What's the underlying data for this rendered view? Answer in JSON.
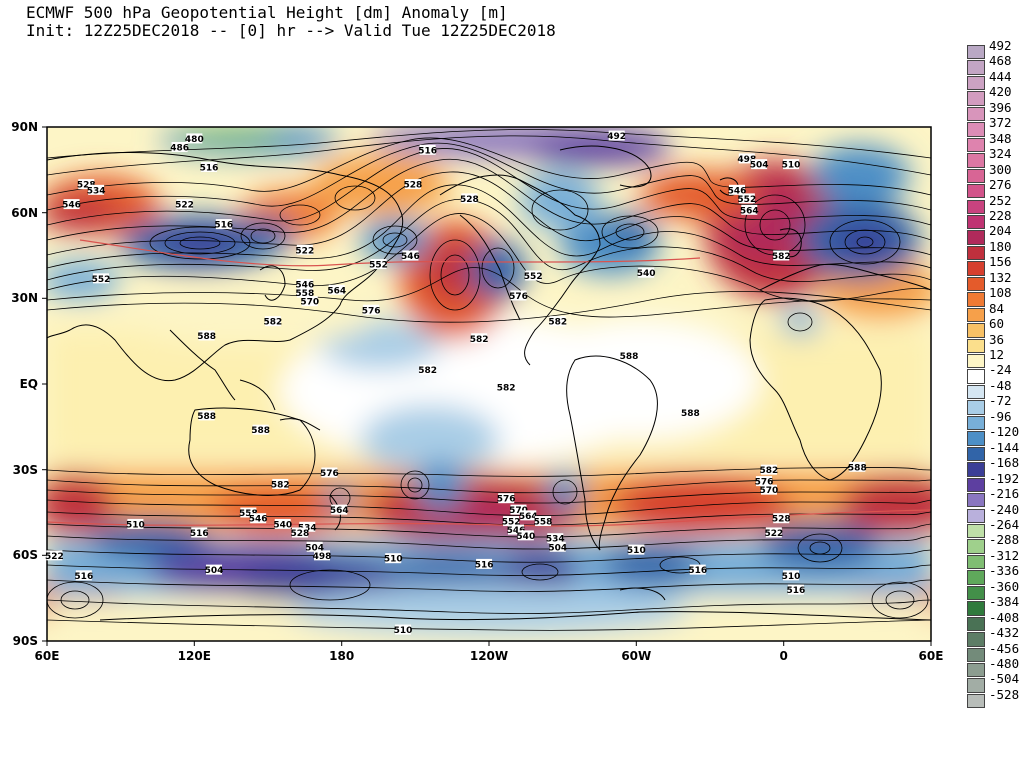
{
  "title": {
    "line1": "ECMWF 500 hPa Geopotential Height [dm] Anomaly [m]",
    "line2": "Init: 12Z25DEC2018 -- [0] hr --> Valid Tue 12Z25DEC2018"
  },
  "axes": {
    "lat_labels": [
      "90N",
      "60N",
      "30N",
      "EQ",
      "30S",
      "60S",
      "90S"
    ],
    "lon_labels": [
      "60E",
      "120E",
      "180",
      "120W",
      "60W",
      "0",
      "60E"
    ]
  },
  "colors": {
    "land_outline": "#000000",
    "contour": "#000000",
    "ref_contour": "#d9534f",
    "ocean_neutral": "#ffffff"
  },
  "legend": {
    "entries": [
      {
        "label": "492",
        "color": "#b9a8c4"
      },
      {
        "label": "468",
        "color": "#c3a5c4"
      },
      {
        "label": "444",
        "color": "#cca2c3"
      },
      {
        "label": "420",
        "color": "#d29cbf"
      },
      {
        "label": "396",
        "color": "#d895bb"
      },
      {
        "label": "372",
        "color": "#dc8db6"
      },
      {
        "label": "348",
        "color": "#de83ae"
      },
      {
        "label": "324",
        "color": "#dc77a3"
      },
      {
        "label": "300",
        "color": "#d86595"
      },
      {
        "label": "276",
        "color": "#d2538a"
      },
      {
        "label": "252",
        "color": "#c9437f"
      },
      {
        "label": "228",
        "color": "#bf3372"
      },
      {
        "label": "204",
        "color": "#b02a5b"
      },
      {
        "label": "180",
        "color": "#c0303d"
      },
      {
        "label": "156",
        "color": "#d63f2e"
      },
      {
        "label": "132",
        "color": "#e45b2b"
      },
      {
        "label": "108",
        "color": "#ef7a34"
      },
      {
        "label": "84",
        "color": "#f6a04a"
      },
      {
        "label": "60",
        "color": "#f8c166"
      },
      {
        "label": "36",
        "color": "#fbdf8c"
      },
      {
        "label": "12",
        "color": "#fdf5c6"
      },
      {
        "label": "-24",
        "color": "#ffffff"
      },
      {
        "label": "-48",
        "color": "#d5e6f2"
      },
      {
        "label": "-72",
        "color": "#a9cde6"
      },
      {
        "label": "-96",
        "color": "#78afd8"
      },
      {
        "label": "-120",
        "color": "#4d8fc6"
      },
      {
        "label": "-144",
        "color": "#3164a8"
      },
      {
        "label": "-168",
        "color": "#3b3e96"
      },
      {
        "label": "-192",
        "color": "#5d3fa0"
      },
      {
        "label": "-216",
        "color": "#8a76c0"
      },
      {
        "label": "-240",
        "color": "#b9b0dc"
      },
      {
        "label": "-264",
        "color": "#bfe0a8"
      },
      {
        "label": "-288",
        "color": "#9fd08c"
      },
      {
        "label": "-312",
        "color": "#7fbd72"
      },
      {
        "label": "-336",
        "color": "#5fa85b"
      },
      {
        "label": "-360",
        "color": "#438f49"
      },
      {
        "label": "-384",
        "color": "#2f7a3c"
      },
      {
        "label": "-408",
        "color": "#4a7255"
      },
      {
        "label": "-432",
        "color": "#5d7d66"
      },
      {
        "label": "-456",
        "color": "#738b7a"
      },
      {
        "label": "-480",
        "color": "#8c9d90"
      },
      {
        "label": "-504",
        "color": "#a2ada5"
      },
      {
        "label": "-528",
        "color": "#b8bdb9"
      }
    ]
  },
  "contour_labels": [
    {
      "text": "480",
      "lon": 120,
      "lat": 86
    },
    {
      "text": "486",
      "lon": 114,
      "lat": 83
    },
    {
      "text": "492",
      "lon": 292,
      "lat": 87
    },
    {
      "text": "498",
      "lon": 345,
      "lat": 79
    },
    {
      "text": "504",
      "lon": 350,
      "lat": 77
    },
    {
      "text": "510",
      "lon": 3,
      "lat": 77
    },
    {
      "text": "516",
      "lon": 215,
      "lat": 82
    },
    {
      "text": "516",
      "lon": 126,
      "lat": 76
    },
    {
      "text": "528",
      "lon": 209,
      "lat": 70
    },
    {
      "text": "528",
      "lon": 232,
      "lat": 65
    },
    {
      "text": "528",
      "lon": 76,
      "lat": 70
    },
    {
      "text": "534",
      "lon": 80,
      "lat": 68
    },
    {
      "text": "546",
      "lon": 70,
      "lat": 63
    },
    {
      "text": "522",
      "lon": 116,
      "lat": 63
    },
    {
      "text": "516",
      "lon": 132,
      "lat": 56
    },
    {
      "text": "522",
      "lon": 165,
      "lat": 47
    },
    {
      "text": "552",
      "lon": 195,
      "lat": 42
    },
    {
      "text": "552",
      "lon": 82,
      "lat": 37
    },
    {
      "text": "546",
      "lon": 165,
      "lat": 35
    },
    {
      "text": "558",
      "lon": 165,
      "lat": 32
    },
    {
      "text": "564",
      "lon": 178,
      "lat": 33
    },
    {
      "text": "570",
      "lon": 167,
      "lat": 29
    },
    {
      "text": "576",
      "lon": 192,
      "lat": 26
    },
    {
      "text": "582",
      "lon": 152,
      "lat": 22
    },
    {
      "text": "588",
      "lon": 125,
      "lat": 17
    },
    {
      "text": "582",
      "lon": 236,
      "lat": 16
    },
    {
      "text": "588",
      "lon": 297,
      "lat": 10
    },
    {
      "text": "582",
      "lon": 215,
      "lat": 5
    },
    {
      "text": "582",
      "lon": 247,
      "lat": -1
    },
    {
      "text": "588",
      "lon": 125,
      "lat": -11
    },
    {
      "text": "588",
      "lon": 147,
      "lat": -16
    },
    {
      "text": "588",
      "lon": 322,
      "lat": -10
    },
    {
      "text": "588",
      "lon": 30,
      "lat": -29
    },
    {
      "text": "582",
      "lon": 155,
      "lat": -35
    },
    {
      "text": "576",
      "lon": 175,
      "lat": -31
    },
    {
      "text": "576",
      "lon": 247,
      "lat": -40
    },
    {
      "text": "570",
      "lon": 252,
      "lat": -44
    },
    {
      "text": "564",
      "lon": 256,
      "lat": -46
    },
    {
      "text": "558",
      "lon": 262,
      "lat": -48
    },
    {
      "text": "552",
      "lon": 249,
      "lat": -48
    },
    {
      "text": "546",
      "lon": 251,
      "lat": -51
    },
    {
      "text": "540",
      "lon": 255,
      "lat": -53
    },
    {
      "text": "534",
      "lon": 267,
      "lat": -54
    },
    {
      "text": "504",
      "lon": 268,
      "lat": -57
    },
    {
      "text": "510",
      "lon": 300,
      "lat": -58
    },
    {
      "text": "516",
      "lon": 238,
      "lat": -63
    },
    {
      "text": "510",
      "lon": 201,
      "lat": -61
    },
    {
      "text": "498",
      "lon": 172,
      "lat": -60
    },
    {
      "text": "504",
      "lon": 169,
      "lat": -57
    },
    {
      "text": "516",
      "lon": 122,
      "lat": -52
    },
    {
      "text": "504",
      "lon": 128,
      "lat": -65
    },
    {
      "text": "510",
      "lon": 96,
      "lat": -49
    },
    {
      "text": "558",
      "lon": 142,
      "lat": -45
    },
    {
      "text": "546",
      "lon": 146,
      "lat": -47
    },
    {
      "text": "540",
      "lon": 156,
      "lat": -49
    },
    {
      "text": "534",
      "lon": 166,
      "lat": -50
    },
    {
      "text": "528",
      "lon": 163,
      "lat": -52
    },
    {
      "text": "564",
      "lon": 179,
      "lat": -44
    },
    {
      "text": "522",
      "lon": 63,
      "lat": -60
    },
    {
      "text": "516",
      "lon": 75,
      "lat": -67
    },
    {
      "text": "582",
      "lon": 354,
      "lat": -30
    },
    {
      "text": "576",
      "lon": 352,
      "lat": -34
    },
    {
      "text": "570",
      "lon": 354,
      "lat": -37
    },
    {
      "text": "528",
      "lon": 359,
      "lat": -47
    },
    {
      "text": "522",
      "lon": 356,
      "lat": -52
    },
    {
      "text": "516",
      "lon": 325,
      "lat": -65
    },
    {
      "text": "510",
      "lon": 3,
      "lat": -67
    },
    {
      "text": "516",
      "lon": 5,
      "lat": -72
    },
    {
      "text": "510",
      "lon": 205,
      "lat": -86
    },
    {
      "text": "546",
      "lon": 341,
      "lat": 68
    },
    {
      "text": "552",
      "lon": 345,
      "lat": 65
    },
    {
      "text": "564",
      "lon": 346,
      "lat": 61
    },
    {
      "text": "582",
      "lon": 359,
      "lat": 45
    },
    {
      "text": "552",
      "lon": 258,
      "lat": 38
    },
    {
      "text": "540",
      "lon": 304,
      "lat": 39
    },
    {
      "text": "576",
      "lon": 252,
      "lat": 31
    },
    {
      "text": "582",
      "lon": 268,
      "lat": 22
    },
    {
      "text": "546",
      "lon": 208,
      "lat": 45
    }
  ]
}
